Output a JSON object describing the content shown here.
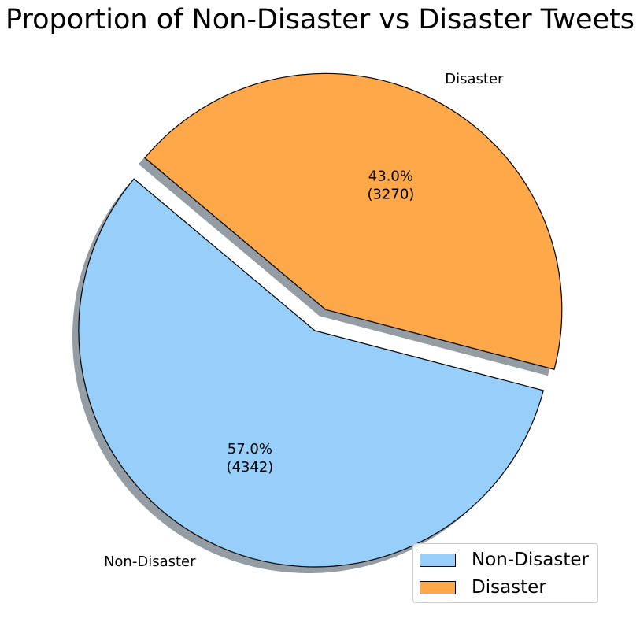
{
  "chart_data": {
    "type": "pie",
    "title": "Proportion of Non-Disaster vs Disaster Tweets",
    "slices": [
      {
        "label": "Non-Disaster",
        "value": 4342,
        "percent": 57.0,
        "pct_text": "57.0%",
        "count_text": "(4342)",
        "color": "#97cefa",
        "explode": 0
      },
      {
        "label": "Disaster",
        "value": 3270,
        "percent": 43.0,
        "pct_text": "43.0%",
        "count_text": "(3270)",
        "color": "#fea84a",
        "explode": 0.1
      }
    ],
    "shadow": true,
    "legend_placement": "bottom-right",
    "legend": [
      "Non-Disaster",
      "Disaster"
    ]
  }
}
